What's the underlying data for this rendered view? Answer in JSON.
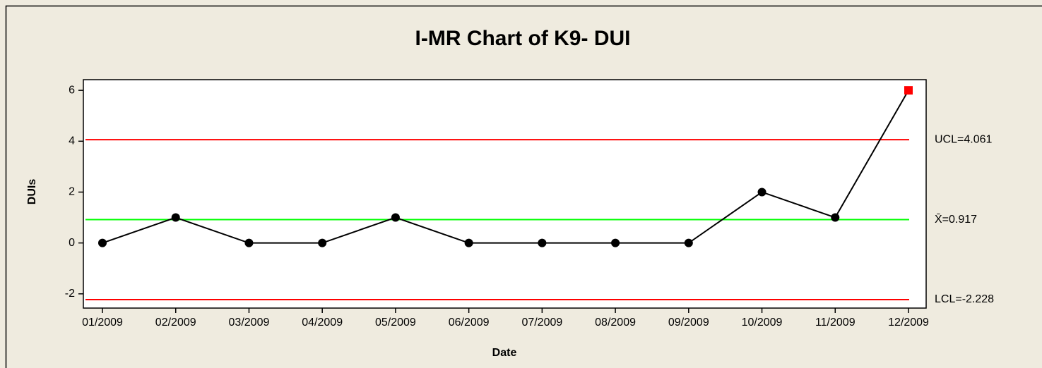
{
  "chart_data": {
    "type": "line",
    "title": "I-MR Chart of K9- DUI",
    "x_label": "Date",
    "y_label": "DUIs",
    "categories": [
      "01/2009",
      "02/2009",
      "03/2009",
      "04/2009",
      "05/2009",
      "06/2009",
      "07/2009",
      "08/2009",
      "09/2009",
      "10/2009",
      "11/2009",
      "12/2009"
    ],
    "series": [
      {
        "name": "DUIs",
        "color": "#000000",
        "values": [
          0,
          1,
          0,
          0,
          1,
          0,
          0,
          0,
          0,
          2,
          1,
          6
        ],
        "marker_colors": [
          "#000000",
          "#000000",
          "#000000",
          "#000000",
          "#000000",
          "#000000",
          "#000000",
          "#000000",
          "#000000",
          "#000000",
          "#000000",
          "#ff0000"
        ],
        "marker_shapes": [
          "circle",
          "circle",
          "circle",
          "circle",
          "circle",
          "circle",
          "circle",
          "circle",
          "circle",
          "circle",
          "circle",
          "square"
        ]
      }
    ],
    "control_lines": [
      {
        "value": 4.061,
        "label": "UCL=4.061",
        "color": "#ff0000"
      },
      {
        "value": 0.917,
        "label": "X̄=0.917",
        "color": "#00ff00"
      },
      {
        "value": -2.228,
        "label": "LCL=-2.228",
        "color": "#ff0000"
      }
    ],
    "ylim": [
      -2.56,
      6.42
    ],
    "yticks": [
      -2,
      0,
      2,
      4,
      6
    ]
  }
}
